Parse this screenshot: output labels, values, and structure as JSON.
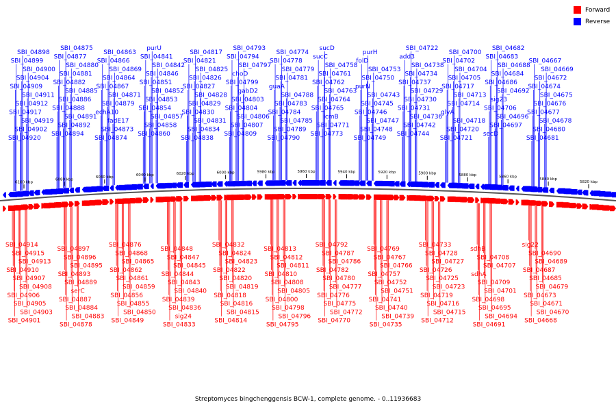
{
  "legend": [
    {
      "label": "Forward",
      "color": "#ff0000"
    },
    {
      "label": "Reverse",
      "color": "#0000ff"
    }
  ],
  "caption": "Streptomyces bingchenggensis BCW-1, complete genome. - 0..11936683",
  "colors": {
    "forward": "#ff0000",
    "reverse": "#0000ff",
    "backbone": "#555555",
    "text": "#000000"
  },
  "axis_ticks": [
    {
      "label": "6100 kbp",
      "pos": 6100
    },
    {
      "label": "6080 kbp",
      "pos": 6080
    },
    {
      "label": "6060 kbp",
      "pos": 6060
    },
    {
      "label": "6040 kbp",
      "pos": 6040
    },
    {
      "label": "6020 kbp",
      "pos": 6020
    },
    {
      "label": "6000 kbp",
      "pos": 6000
    },
    {
      "label": "5980 kbp",
      "pos": 5980
    },
    {
      "label": "5960 kbp",
      "pos": 5960
    },
    {
      "label": "5940 kbp",
      "pos": 5940
    },
    {
      "label": "5920 kbp",
      "pos": 5920
    },
    {
      "label": "5900 kbp",
      "pos": 5900
    },
    {
      "label": "5880 kbp",
      "pos": 5880
    },
    {
      "label": "5860 kbp",
      "pos": 5860
    },
    {
      "label": "5840 kbp",
      "pos": 5840
    },
    {
      "label": "5820 kbp",
      "pos": 5820
    }
  ],
  "reverse_genes": [
    "SBI_04920",
    "SBI_04902",
    "SBI_04919",
    "SBI_04917",
    "SBI_04912",
    "SBI_04911",
    "SBI_04909",
    "SBI_04904",
    "SBI_04900",
    "SBI_04899",
    "SBI_04898",
    "SBI_04894",
    "SBI_04892",
    "SBI_04891",
    "SBI_04888",
    "SBI_04886",
    "SBI_04885",
    "SBI_04882",
    "SBI_04881",
    "SBI_04880",
    "SBI_04877",
    "SBI_04875",
    "SBI_04874",
    "SBI_04873",
    "fadE17",
    "echA10",
    "SBI_04879",
    "SBI_04871",
    "SBI_04867",
    "SBI_04864",
    "SBI_04869",
    "SBI_04866",
    "SBI_04863",
    "SBI_04860",
    "SBI_04858",
    "SBI_04857",
    "SBI_04854",
    "SBI_04853",
    "SBI_04852",
    "SBI_04851",
    "SBI_04846",
    "SBI_04842",
    "SBI_04841",
    "purU",
    "SBI_04838",
    "SBI_04834",
    "SBI_04831",
    "SBI_04830",
    "SBI_04829",
    "SBI_04828",
    "SBI_04827",
    "SBI_04826",
    "SBI_04825",
    "SBI_04821",
    "SBI_04817",
    "SBI_04809",
    "SBI_04807",
    "SBI_04806",
    "SBI_04804",
    "SBI_04803",
    "gabD2",
    "SBI_04799",
    "choD",
    "SBI_04797",
    "SBI_04794",
    "SBI_04793",
    "SBI_04790",
    "SBI_04789",
    "SBI_04785",
    "SBI_04784",
    "SBI_04783",
    "SBI_04788",
    "guaA",
    "SBI_04781",
    "SBI_04779",
    "SBI_04778",
    "SBI_04774",
    "SBI_04773",
    "SBI_04771",
    "icmB",
    "SBI_04765",
    "SBI_04764",
    "SBI_04763",
    "SBI_04762",
    "SBI_04761",
    "SBI_04758",
    "sucC",
    "sucD",
    "SBI_04749",
    "SBI_04748",
    "SBI_04747",
    "SBI_04746",
    "SBI_04745",
    "SBI_04743",
    "purN",
    "SBI_04750",
    "SBI_04753",
    "folD",
    "purH",
    "SBI_04744",
    "SBI_04742",
    "SBI_04736",
    "SBI_04731",
    "SBI_04730",
    "SBI_04729",
    "SBI_04737",
    "SBI_04734",
    "SBI_04738",
    "add3",
    "SBI_04722",
    "SBI_04721",
    "SBI_04720",
    "SBI_04718",
    "glyA",
    "SBI_04714",
    "SBI_04713",
    "SBI_04717",
    "SBI_04705",
    "SBI_04704",
    "SBI_04702",
    "SBI_04700",
    "secD",
    "SBI_04697",
    "SBI_04696",
    "SBI_04706",
    "sig23",
    "SBI_04692",
    "SBI_04686",
    "SBI_04684",
    "SBI_04688",
    "SBI_04683",
    "SBI_04682",
    "SBI_04681",
    "SBI_04680",
    "SBI_04678",
    "SBI_04677",
    "SBI_04676",
    "SBI_04675",
    "SBI_04674",
    "SBI_04672",
    "SBI_04669",
    "SBI_04667"
  ],
  "forward_genes": [
    "SBI_04914",
    "SBI_04915",
    "SBI_04913",
    "SBI_04910",
    "SBI_04907",
    "SBI_04908",
    "SBI_04906",
    "SBI_04905",
    "SBI_04903",
    "SBI_04901",
    "SBI_04897",
    "SBI_04896",
    "SBI_04895",
    "SBI_04893",
    "SBI_04889",
    "serC",
    "SBI_04887",
    "SBI_04884",
    "SBI_04883",
    "SBI_04878",
    "SBI_04876",
    "SBI_04868",
    "SBI_04865",
    "SBI_04862",
    "SBI_04861",
    "SBI_04859",
    "SBI_04856",
    "SBI_04855",
    "SBI_04850",
    "SBI_04849",
    "SBI_04848",
    "SBI_04847",
    "SBI_04845",
    "SBI_04844",
    "SBI_04843",
    "SBI_04840",
    "SBI_04839",
    "SBI_04836",
    "sig24",
    "SBI_04833",
    "SBI_04832",
    "SBI_04824",
    "SBI_04823",
    "SBI_04822",
    "SBI_04820",
    "SBI_04819",
    "SBI_04818",
    "SBI_04816",
    "SBI_04815",
    "SBI_04814",
    "SBI_04813",
    "SBI_04812",
    "SBI_04811",
    "SBI_04810",
    "SBI_04808",
    "SBI_04805",
    "SBI_04800",
    "SBI_04798",
    "SBI_04796",
    "SBI_04795",
    "SBI_04792",
    "SBI_04787",
    "SBI_04786",
    "SBI_04782",
    "SBI_04780",
    "SBI_04777",
    "SBI_04776",
    "SBI_04775",
    "SBI_04772",
    "SBI_04770",
    "SBI_04769",
    "SBI_04767",
    "SBI_04766",
    "SBI_04757",
    "SBI_04752",
    "SBI_04751",
    "SBI_04741",
    "SBI_04740",
    "SBI_04739",
    "SBI_04735",
    "SBI_04733",
    "SBI_04728",
    "SBI_04727",
    "SBI_04726",
    "SBI_04725",
    "SBI_04723",
    "SBI_04719",
    "SBI_04716",
    "SBI_04715",
    "SBI_04712",
    "sdhB",
    "SBI_04708",
    "SBI_04707",
    "sdhA",
    "SBI_04709",
    "SBI_04701",
    "SBI_04698",
    "SBI_04695",
    "SBI_04694",
    "SBI_04691",
    "sig22",
    "SBI_04690",
    "SBI_04689",
    "SBI_04687",
    "SBI_04685",
    "SBI_04679",
    "SBI_04673",
    "SBI_04671",
    "SBI_04670",
    "SBI_04668"
  ]
}
